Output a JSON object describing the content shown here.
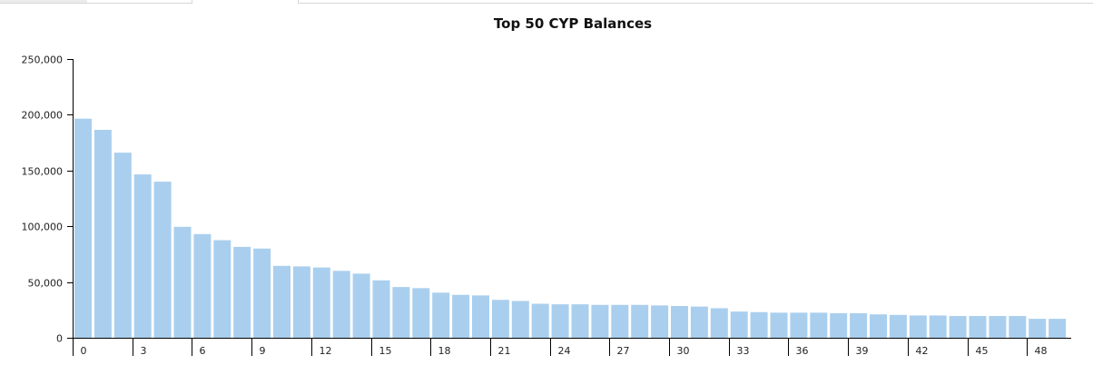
{
  "window": {
    "tabs": [
      "",
      "",
      ""
    ]
  },
  "colors": {
    "bar": "#aacfee",
    "axis": "#000000",
    "text": "#111111"
  },
  "chart_data": {
    "type": "bar",
    "title": "Top 50 CYP Balances",
    "xlabel": "",
    "ylabel": "",
    "ylim": [
      0,
      250000
    ],
    "yticks": [
      0,
      50000,
      100000,
      150000,
      200000,
      250000
    ],
    "ytick_labels": [
      "0",
      "50,000",
      "100,000",
      "150,000",
      "200,000",
      "250,000"
    ],
    "xtick_labels": [
      "0",
      "3",
      "6",
      "9",
      "12",
      "15",
      "18",
      "21",
      "24",
      "27",
      "30",
      "33",
      "36",
      "39",
      "42",
      "45",
      "48"
    ],
    "xtick_indices": [
      0,
      3,
      6,
      9,
      12,
      15,
      18,
      21,
      24,
      27,
      30,
      33,
      36,
      39,
      42,
      45,
      48
    ],
    "grid": false,
    "legend": "none",
    "categories": [
      0,
      1,
      2,
      3,
      4,
      5,
      6,
      7,
      8,
      9,
      10,
      11,
      12,
      13,
      14,
      15,
      16,
      17,
      18,
      19,
      20,
      21,
      22,
      23,
      24,
      25,
      26,
      27,
      28,
      29,
      30,
      31,
      32,
      33,
      34,
      35,
      36,
      37,
      38,
      39,
      40,
      41,
      42,
      43,
      44,
      45,
      46,
      47,
      48,
      49
    ],
    "values": [
      196500,
      186500,
      166000,
      146500,
      140000,
      99500,
      93000,
      87500,
      81500,
      80000,
      64500,
      64000,
      63000,
      60000,
      57500,
      51500,
      45500,
      44500,
      40500,
      38500,
      38000,
      34000,
      33000,
      30500,
      30000,
      30000,
      29500,
      29500,
      29500,
      29000,
      28500,
      28000,
      26500,
      23500,
      23000,
      22500,
      22500,
      22500,
      22000,
      22000,
      21000,
      20500,
      20000,
      20000,
      19500,
      19500,
      19500,
      19500,
      17000,
      17000
    ]
  }
}
